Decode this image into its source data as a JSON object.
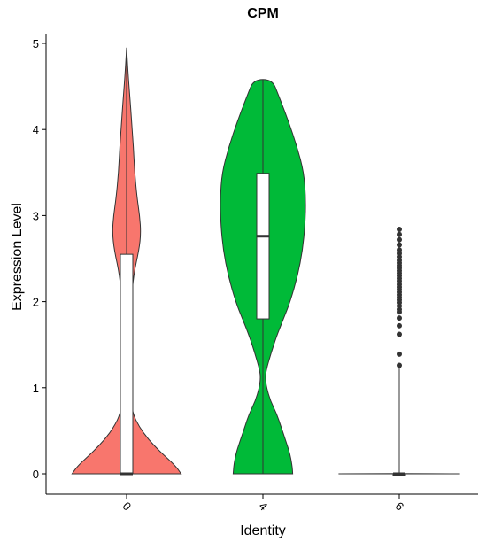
{
  "chart_data": {
    "type": "violin",
    "title": "CPM",
    "xlabel": "Identity",
    "ylabel": "Expression Level",
    "ylim": [
      0,
      5
    ],
    "yticks": [
      0,
      1,
      2,
      3,
      4,
      5
    ],
    "grid": false,
    "legend": "none",
    "categories": [
      "0",
      "4",
      "6"
    ],
    "series": [
      {
        "category": "0",
        "color": "#F8766D",
        "box": {
          "min": 0,
          "q1": 0,
          "median": 0,
          "q3": 2.55,
          "max": 4.95
        },
        "density": [
          [
            0.0,
            0.88
          ],
          [
            0.1,
            0.78
          ],
          [
            0.25,
            0.55
          ],
          [
            0.4,
            0.35
          ],
          [
            0.55,
            0.2
          ],
          [
            0.7,
            0.1
          ],
          [
            0.9,
            0.06
          ],
          [
            1.2,
            0.05
          ],
          [
            1.6,
            0.06
          ],
          [
            2.0,
            0.08
          ],
          [
            2.3,
            0.11
          ],
          [
            2.6,
            0.2
          ],
          [
            2.8,
            0.23
          ],
          [
            3.0,
            0.21
          ],
          [
            3.2,
            0.17
          ],
          [
            3.5,
            0.13
          ],
          [
            3.8,
            0.11
          ],
          [
            4.1,
            0.08
          ],
          [
            4.4,
            0.05
          ],
          [
            4.7,
            0.02
          ],
          [
            4.95,
            0.0
          ]
        ],
        "outliers": []
      },
      {
        "category": "4",
        "color": "#00BA38",
        "box": {
          "min": 0,
          "q1": 1.8,
          "median": 2.76,
          "q3": 3.49,
          "max": 4.58
        },
        "density": [
          [
            0.0,
            0.48
          ],
          [
            0.1,
            0.47
          ],
          [
            0.25,
            0.43
          ],
          [
            0.4,
            0.36
          ],
          [
            0.55,
            0.29
          ],
          [
            0.7,
            0.22
          ],
          [
            0.85,
            0.12
          ],
          [
            1.0,
            0.06
          ],
          [
            1.1,
            0.04
          ],
          [
            1.2,
            0.05
          ],
          [
            1.4,
            0.13
          ],
          [
            1.6,
            0.22
          ],
          [
            1.8,
            0.33
          ],
          [
            2.0,
            0.44
          ],
          [
            2.3,
            0.56
          ],
          [
            2.6,
            0.64
          ],
          [
            2.9,
            0.68
          ],
          [
            3.2,
            0.69
          ],
          [
            3.5,
            0.66
          ],
          [
            3.8,
            0.55
          ],
          [
            4.1,
            0.41
          ],
          [
            4.4,
            0.25
          ],
          [
            4.58,
            0.15
          ]
        ],
        "outliers": []
      },
      {
        "category": "6",
        "color": "#619CFF",
        "box": {
          "min": 0,
          "q1": 0,
          "median": 0,
          "q3": 0,
          "max": 1.25
        },
        "density": [
          [
            0.0,
            0.98
          ],
          [
            0.003,
            0.0
          ]
        ],
        "outliers": [
          1.26,
          1.39,
          1.62,
          1.72,
          1.81,
          1.88,
          1.91,
          1.95,
          1.99,
          2.02,
          2.05,
          2.08,
          2.11,
          2.14,
          2.17,
          2.2,
          2.24,
          2.27,
          2.3,
          2.33,
          2.36,
          2.39,
          2.42,
          2.45,
          2.48,
          2.52,
          2.56,
          2.6,
          2.66,
          2.72,
          2.78,
          2.84
        ]
      }
    ]
  }
}
